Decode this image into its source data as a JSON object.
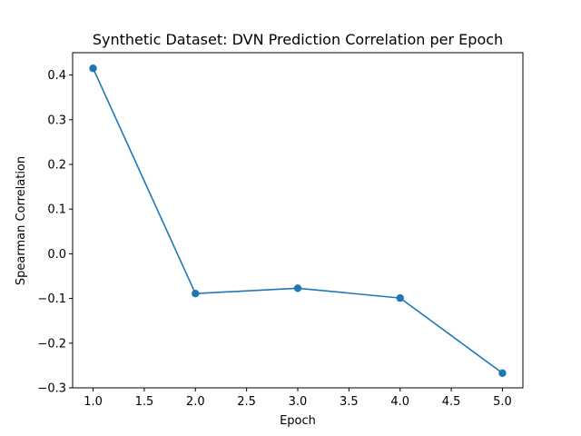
{
  "chart_data": {
    "type": "line",
    "title": "Synthetic Dataset: DVN Prediction Correlation per Epoch",
    "xlabel": "Epoch",
    "ylabel": "Spearman Correlation",
    "xlim": [
      0.8,
      5.2
    ],
    "ylim": [
      -0.3,
      0.45
    ],
    "xticks": [
      1.0,
      1.5,
      2.0,
      2.5,
      3.0,
      3.5,
      4.0,
      4.5,
      5.0
    ],
    "xtick_labels": [
      "1.0",
      "1.5",
      "2.0",
      "2.5",
      "3.0",
      "3.5",
      "4.0",
      "4.5",
      "5.0"
    ],
    "yticks": [
      -0.3,
      -0.2,
      -0.1,
      0.0,
      0.1,
      0.2,
      0.3,
      0.4
    ],
    "ytick_labels": [
      "−0.3",
      "−0.2",
      "−0.1",
      "0.0",
      "0.1",
      "0.2",
      "0.3",
      "0.4"
    ],
    "grid": false,
    "legend": "none",
    "series": [
      {
        "color": "#1f77b4",
        "marker": "circle",
        "x": [
          1,
          2,
          3,
          4,
          5
        ],
        "y": [
          0.415,
          -0.089,
          -0.077,
          -0.099,
          -0.267
        ]
      }
    ]
  }
}
